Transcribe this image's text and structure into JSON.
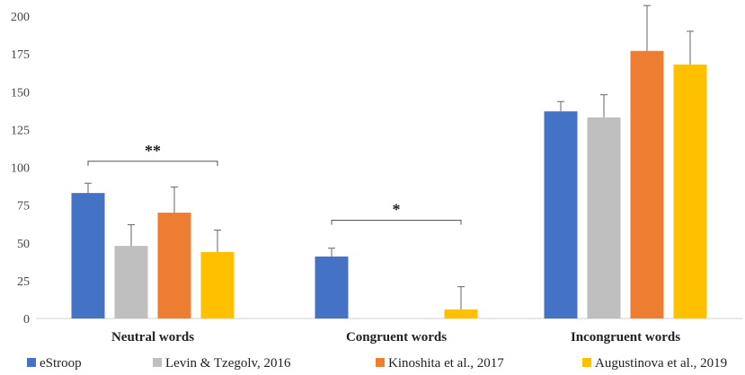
{
  "chart_data": {
    "type": "bar",
    "title": "",
    "xlabel": "",
    "ylabel": "",
    "ylim": [
      0,
      200
    ],
    "yticks": [
      0,
      25,
      50,
      75,
      100,
      125,
      150,
      175,
      200
    ],
    "grid": false,
    "legend_position": "bottom",
    "categories": [
      "Neutral words",
      "Congruent words",
      "Incongruent words"
    ],
    "series": [
      {
        "name": "eStroop",
        "color": "#4472C4",
        "values": [
          83,
          41,
          137
        ],
        "errors": [
          6.5,
          5.5,
          6.5
        ]
      },
      {
        "name": "Levin & Tzegolv, 2016",
        "color": "#BFBFBF",
        "values": [
          48,
          null,
          133
        ],
        "errors": [
          14,
          null,
          15
        ]
      },
      {
        "name": "Kinoshita et al., 2017",
        "color": "#ED7D31",
        "values": [
          70,
          null,
          177
        ],
        "errors": [
          17,
          null,
          30
        ]
      },
      {
        "name": "Augustinova et al., 2019",
        "color": "#FFC000",
        "values": [
          44,
          6,
          168
        ],
        "errors": [
          14.5,
          15,
          22
        ]
      }
    ],
    "annotations": [
      {
        "text": "**",
        "category": 0,
        "from_series": 0,
        "to_series": 3,
        "y": 104
      },
      {
        "text": "*",
        "category": 1,
        "from_series": 0,
        "to_series": 3,
        "y": 65
      }
    ]
  }
}
